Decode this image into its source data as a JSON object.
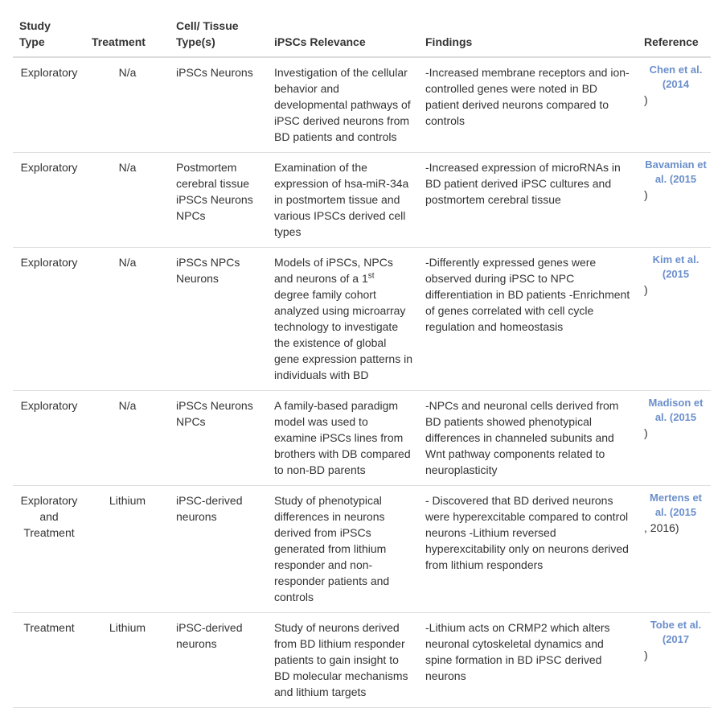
{
  "table": {
    "columns": [
      "Study Type",
      "Treatment",
      "Cell/ Tissue Type(s)",
      "iPSCs Relevance",
      "Findings",
      "Reference"
    ],
    "rows": [
      {
        "study_type": "Exploratory",
        "treatment": "N/a",
        "cell_type": "iPSCs Neurons",
        "relevance": "Investigation of the cellular behavior and developmental pathways of iPSC derived neurons from BD patients and controls",
        "findings": "-Increased membrane receptors and ion-controlled genes were noted in BD patient derived neurons compared to controls",
        "reference": {
          "link": "Chen et al. (2014",
          "suffix": ")"
        }
      },
      {
        "study_type": "Exploratory",
        "treatment": "N/a",
        "cell_type": "Postmortem cerebral tissue iPSCs Neurons NPCs",
        "relevance": "Examination of the expression of hsa-miR-34a in postmortem tissue and various IPSCs derived cell types",
        "findings": "-Increased expression of microRNAs in BD patient derived iPSC cultures and postmortem cerebral tissue",
        "reference": {
          "link": "Bavamian et al. (2015",
          "suffix": ")"
        }
      },
      {
        "study_type": "Exploratory",
        "treatment": "N/a",
        "cell_type": "iPSCs NPCs Neurons",
        "relevance": {
          "text": "Models of iPSCs, NPCs and neurons of a 1",
          "superscript": "st",
          "continuation": " degree family cohort analyzed using microarray technology to investigate the existence of global gene expression patterns in individuals with BD"
        },
        "findings": "-Differently expressed genes were observed during iPSC to NPC differentiation in BD patients -Enrichment of genes correlated with cell cycle regulation and homeostasis",
        "reference": {
          "link": "Kim et al. (2015",
          "suffix": ")"
        }
      },
      {
        "study_type": "Exploratory",
        "treatment": "N/a",
        "cell_type": "iPSCs Neurons NPCs",
        "relevance": "A family-based paradigm model was used to examine iPSCs lines from brothers with DB compared to non-BD parents",
        "findings": "-NPCs and neuronal cells derived from BD patients showed phenotypical differences in channeled subunits and Wnt pathway components related to neuroplasticity",
        "reference": {
          "link": "Madison et al. (2015",
          "suffix": ")"
        }
      },
      {
        "study_type": "Exploratory and Treatment",
        "treatment": "Lithium",
        "cell_type": "iPSC-derived neurons",
        "relevance": "Study of phenotypical differences in neurons derived from iPSCs generated from lithium responder and non-responder patients and controls",
        "findings": "- Discovered that BD derived neurons were hyperexcitable compared to control neurons -Lithium reversed hyperexcitability only on neurons derived from lithium responders",
        "reference": {
          "link": "Mertens et al. (2015",
          "suffix": ", 2016)"
        }
      },
      {
        "study_type": "Treatment",
        "treatment": "Lithium",
        "cell_type": "iPSC-derived neurons",
        "relevance": "Study of neurons derived from BD lithium responder patients to gain insight to BD molecular mechanisms and lithium targets",
        "findings": "-Lithium acts on CRMP2 which alters neuronal cytoskeletal dynamics and spine formation in BD iPSC derived neurons",
        "reference": {
          "link": "Tobe et al. (2017",
          "suffix": ")"
        }
      }
    ]
  }
}
